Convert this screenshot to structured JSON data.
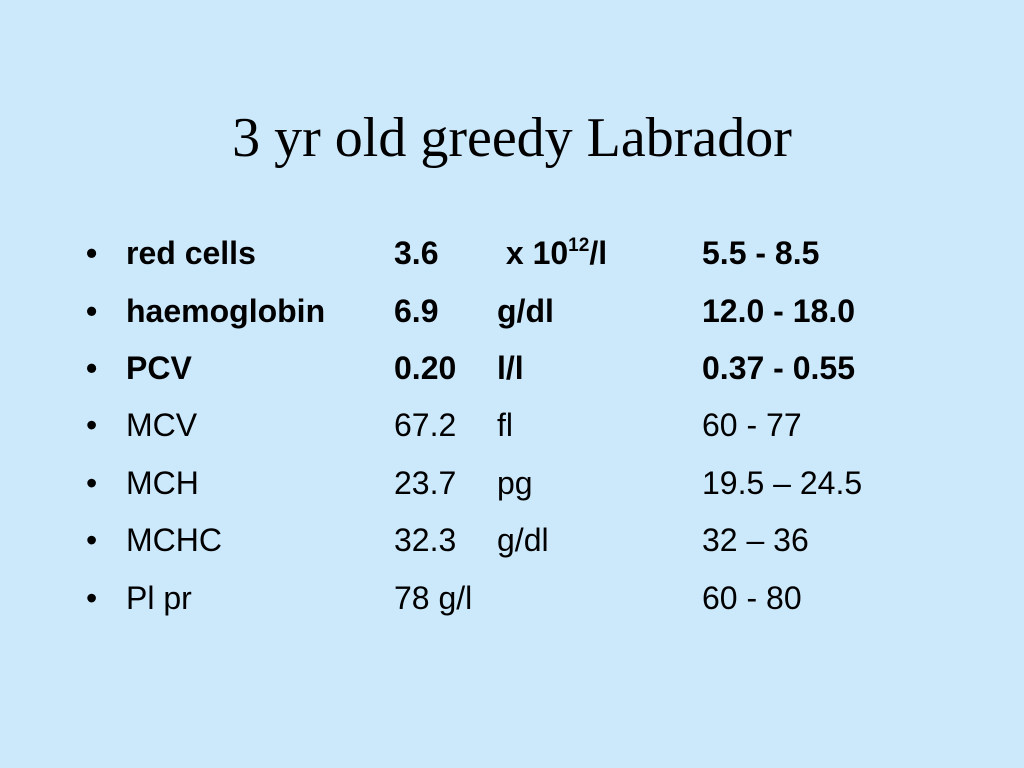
{
  "slide": {
    "title": "3 yr old greedy Labrador",
    "bullet_glyph": "•",
    "rows": [
      {
        "name": "red cells",
        "value": "3.6",
        "unit_lead": " x 10",
        "unit_sup": "12",
        "unit_tail": "/l",
        "reference": "5.5 - 8.5",
        "bold": true
      },
      {
        "name": "haemoglobin",
        "value": "6.9",
        "unit": "g/dl",
        "reference": "12.0 - 18.0",
        "bold": true
      },
      {
        "name": "PCV",
        "value": "0.20",
        "unit": "l/l",
        "reference": "0.37 - 0.55",
        "bold": true
      },
      {
        "name": "MCV",
        "value": "67.2",
        "unit": "fl",
        "reference": "60 - 77",
        "bold": false
      },
      {
        "name": "MCH",
        "value": "23.7",
        "unit": "pg",
        "reference": "19.5 – 24.5",
        "bold": false
      },
      {
        "name": "MCHC",
        "value": "32.3",
        "unit": "g/dl",
        "reference": "32 – 36",
        "bold": false
      },
      {
        "name": "Pl pr",
        "value": "78 g/l",
        "unit": "",
        "reference": "60 - 80",
        "bold": false
      }
    ]
  }
}
